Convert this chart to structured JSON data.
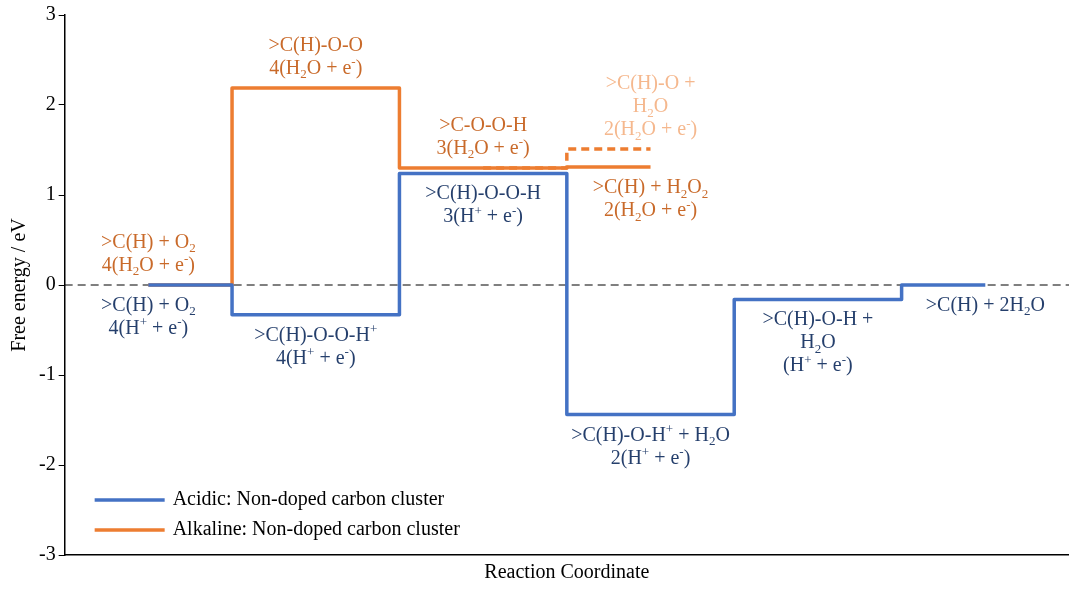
{
  "chart_data": {
    "type": "step",
    "xlabel": "Reaction Coordinate",
    "ylabel": "Free energy / eV",
    "categories": [
      null,
      null,
      null,
      null,
      null,
      null
    ],
    "series": [
      {
        "name": "Acidic: Non-doped carbon cluster",
        "color": "#4472c4",
        "values": [
          0,
          -0.33,
          1.24,
          -1.44,
          -0.16,
          0
        ],
        "value_labels": [
          ">C(H) + O$_{2}$\n4(H$^{+}$ + e$^{-}$)",
          ">C(H)-O-O-H$^{+}$\n4(H$^{+}$ + e$^{-}$)",
          ">C(H)-O-O-H\n3(H$^{+}$ + e$^{-}$)",
          ">C(H)-O-H$^{+}$ + H$_{2}$O\n2(H$^{+}$ + e$^{-}$)",
          ">C(H)-O-H +\nH$_{2}$O\n(H$^{+}$ + e$^{-}$)",
          ">C(H) + 2H$_{2}$O"
        ]
      },
      {
        "color": "#ed7d31",
        "line_style": "dashed",
        "values": [
          null,
          null,
          1.3,
          1.51,
          null,
          null
        ],
        "value_labels": [
          null,
          null,
          null,
          ">C(H)-O +\nH$_{2}$O\n2(H$_{2}$O + e$^{-}$)",
          null,
          null
        ]
      },
      {
        "name": "Alkaline: Non-doped carbon cluster",
        "color": "#ed7d31",
        "values": [
          0,
          2.19,
          1.3,
          1.31,
          null,
          null
        ],
        "value_labels": [
          ">C(H) + O$_{2}$\n4(H$_{2}$O + e$^{-}$)",
          ">C(H)-O-O\n4(H$_{2}$O + e$^{-}$)",
          ">C-O-O-H\n3(H$_{2}$O + e$^{-}$)",
          ">C(H) + H$_{2}$O$_{2}$\n2(H$_{2}$O + e$^{-}$)",
          null,
          null
        ]
      }
    ],
    "ylim": [
      -3,
      3
    ],
    "yticks": [
      -3,
      -2,
      -1,
      0,
      1,
      2,
      3
    ],
    "grid": false,
    "legend": "bottom left",
    "tick_labels": "y",
    "marker": "none",
    "line_style": "solid",
    "ref_lines": [
      {
        "axis": "y",
        "value": 0,
        "color": "#000000",
        "line_style": "dashed"
      }
    ]
  }
}
